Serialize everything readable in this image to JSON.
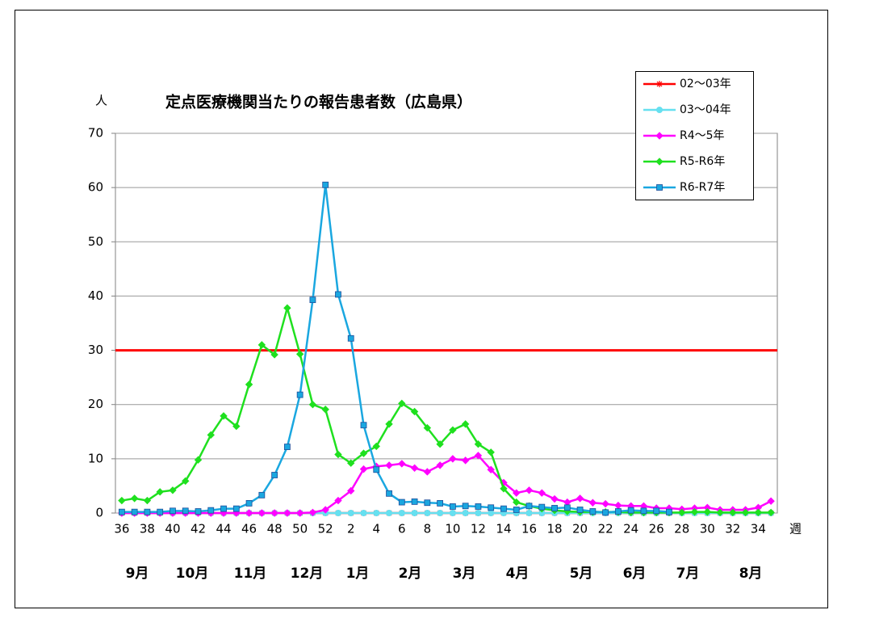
{
  "chart_data": {
    "type": "line",
    "title": "定点医療機関当たりの報告患者数（広島県）",
    "y_unit": "人",
    "x_unit": "週",
    "categories": [
      "36",
      null,
      "38",
      null,
      "40",
      null,
      "42",
      null,
      "44",
      null,
      "46",
      null,
      "48",
      null,
      "50",
      null,
      "52",
      null,
      "2",
      null,
      "4",
      null,
      "6",
      null,
      "8",
      null,
      "10",
      null,
      "12",
      null,
      "14",
      null,
      "16",
      null,
      "18",
      null,
      "20",
      null,
      "22",
      null,
      "24",
      null,
      "26",
      null,
      "28",
      null,
      "30",
      null,
      "32",
      null,
      "34",
      null
    ],
    "months": [
      "9月",
      "10月",
      "11月",
      "12月",
      "1月",
      "2月",
      "3月",
      "4月",
      "5月",
      "6月",
      "7月",
      "8月"
    ],
    "ylim": [
      0,
      70
    ],
    "yticks": [
      0,
      10,
      20,
      30,
      40,
      50,
      60,
      70
    ],
    "grid": true,
    "reference_line": {
      "value": 30,
      "color": "#ff0000"
    },
    "series": [
      {
        "name": "02～03年",
        "color": "#ff0000",
        "marker": "asterisk",
        "values": [
          0,
          0,
          0,
          0,
          0,
          0,
          0,
          0,
          0,
          0,
          0,
          0,
          0,
          0,
          0,
          0,
          0,
          0,
          0,
          0,
          0,
          0,
          0,
          0,
          0,
          0,
          0,
          0,
          0,
          0,
          0,
          0,
          0,
          0,
          0,
          0,
          0,
          0,
          0,
          0,
          0,
          0,
          0,
          0,
          0,
          0,
          0,
          0,
          0,
          0,
          0,
          0
        ]
      },
      {
        "name": "03～04年",
        "color": "#66e0f0",
        "marker": "circle",
        "values": [
          0,
          0,
          0,
          0,
          0,
          0,
          0,
          0,
          0,
          0,
          0,
          0,
          0,
          0,
          0,
          0,
          0,
          0,
          0,
          0,
          0,
          0,
          0,
          0,
          0,
          0,
          0,
          0,
          0,
          0,
          0,
          0,
          0,
          0,
          0,
          0,
          0,
          0,
          0,
          0,
          0,
          0,
          0,
          0,
          0,
          0,
          0,
          0,
          0,
          0,
          0,
          0
        ]
      },
      {
        "name": "R4～5年",
        "color": "#ff00ff",
        "marker": "diamond",
        "values": [
          0,
          0,
          0,
          0,
          0,
          0,
          0,
          0,
          0,
          0,
          0,
          0,
          0,
          0,
          0,
          0.1,
          0.6,
          2.3,
          4.1,
          8.1,
          8.6,
          8.8,
          9.1,
          8.3,
          7.6,
          8.8,
          10,
          9.7,
          10.6,
          8,
          5.6,
          3.7,
          4.2,
          3.7,
          2.6,
          2,
          2.7,
          1.9,
          1.7,
          1.4,
          1.3,
          1.3,
          0.9,
          0.9,
          0.7,
          0.9,
          1,
          0.6,
          0.6,
          0.6,
          1,
          2.2
        ]
      },
      {
        "name": "R5-R6年",
        "color": "#1fe01f",
        "marker": "diamond",
        "values": [
          2.3,
          2.7,
          2.3,
          3.9,
          4.2,
          5.9,
          9.8,
          14.4,
          17.9,
          16,
          23.7,
          31,
          29.2,
          37.8,
          29.3,
          20,
          19.1,
          10.8,
          9.2,
          11,
          12.3,
          16.4,
          20.2,
          18.7,
          15.7,
          12.7,
          15.3,
          16.4,
          12.7,
          11.2,
          4.5,
          2,
          1.3,
          0.8,
          0.5,
          0.3,
          0.2,
          0.2,
          0.2,
          0.2,
          0.1,
          0.1,
          0.1,
          0.1,
          0.1,
          0.2,
          0.2,
          0.1,
          0.1,
          0.1,
          0.1,
          0.1
        ]
      },
      {
        "name": "R6-R7年",
        "color": "#1aa7e0",
        "marker": "square",
        "values": [
          0.2,
          0.2,
          0.2,
          0.2,
          0.4,
          0.4,
          0.3,
          0.5,
          0.8,
          0.8,
          1.8,
          3.3,
          7,
          12.2,
          21.8,
          39.3,
          60.5,
          40.3,
          32.2,
          16.2,
          8,
          3.6,
          2,
          2.1,
          1.9,
          1.8,
          1.2,
          1.3,
          1.2,
          1,
          0.8,
          0.6,
          1.3,
          1.1,
          0.9,
          1,
          0.6,
          0.3,
          0.1,
          0.3,
          0.5,
          0.4,
          0.4,
          0.2,
          null,
          null,
          null,
          null,
          null,
          null,
          null,
          null
        ]
      }
    ]
  }
}
